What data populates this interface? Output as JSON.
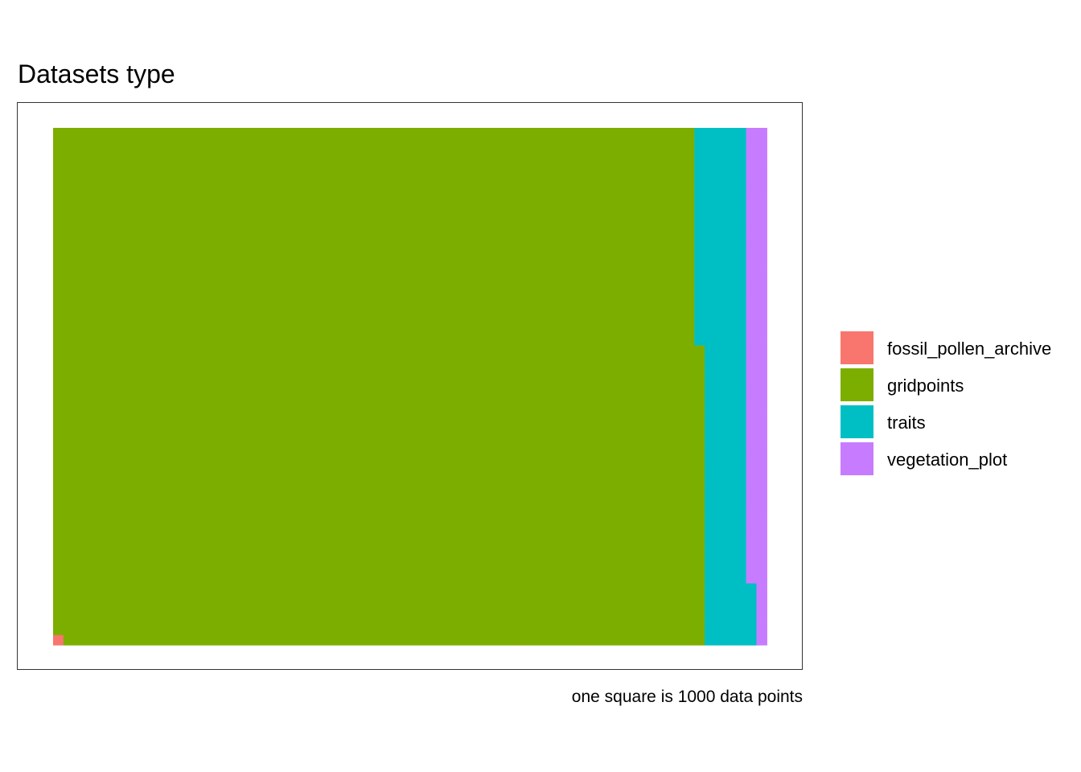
{
  "chart_data": {
    "type": "waffle",
    "title": "Datasets type",
    "caption": "one square is 1000 data points",
    "unit_per_square": 1000,
    "grid_rows": 50,
    "series": [
      {
        "name": "fossil_pollen_archive",
        "squares": 1,
        "color": "#F8766D"
      },
      {
        "name": "gridpoints",
        "squares": 3128,
        "color": "#7CAE00"
      },
      {
        "name": "traits",
        "squares": 227,
        "color": "#00BFC4"
      },
      {
        "name": "vegetation_plot",
        "squares": 94,
        "color": "#C77CFF"
      }
    ],
    "legend_position": "right"
  }
}
